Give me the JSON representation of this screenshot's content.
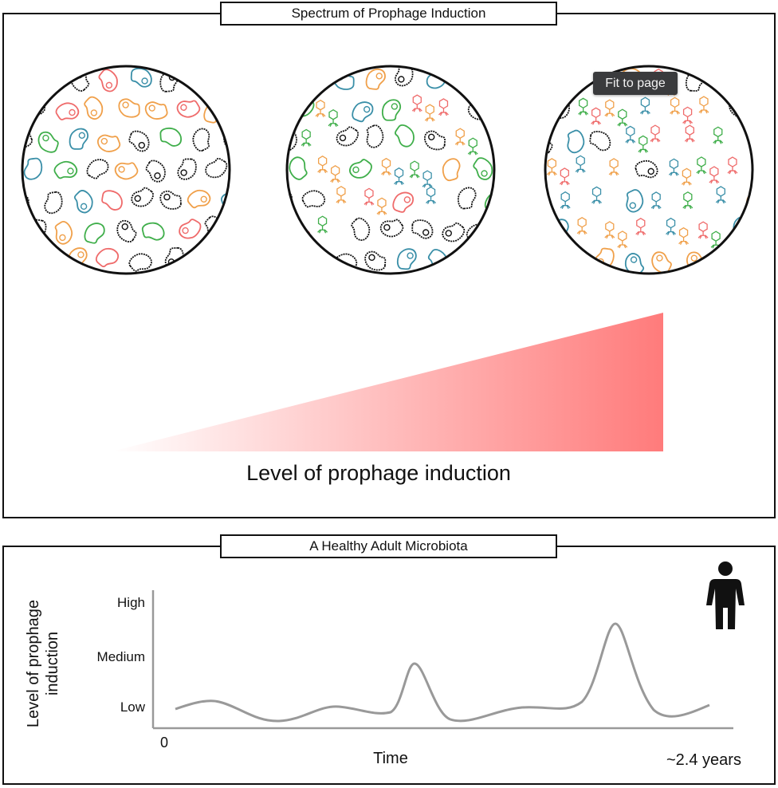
{
  "top_panel": {
    "title": "Spectrum of Prophage Induction",
    "gradient_label": "Level of prophage induction",
    "tooltip": "Fit to page",
    "gradient_color": "#ff7b7b",
    "dishes": [
      {
        "name": "low-induction",
        "phage_count": 0
      },
      {
        "name": "medium-induction",
        "phage_count": 12
      },
      {
        "name": "high-induction",
        "phage_count": 26
      }
    ]
  },
  "bottom_panel": {
    "title": "A Healthy Adult Microbiota",
    "ylabel_line1": "Level of prophage",
    "ylabel_line2": "induction",
    "xlabel": "Time",
    "x_start": "0",
    "x_end": "~2.4 years",
    "ticks": [
      "High",
      "Medium",
      "Low"
    ],
    "icon": "person-icon"
  },
  "colors": {
    "red": "#ef6b6b",
    "green": "#3fae4a",
    "teal": "#3a8fa8",
    "orange": "#f0a04a",
    "black": "#111111",
    "curve": "#999999"
  }
}
